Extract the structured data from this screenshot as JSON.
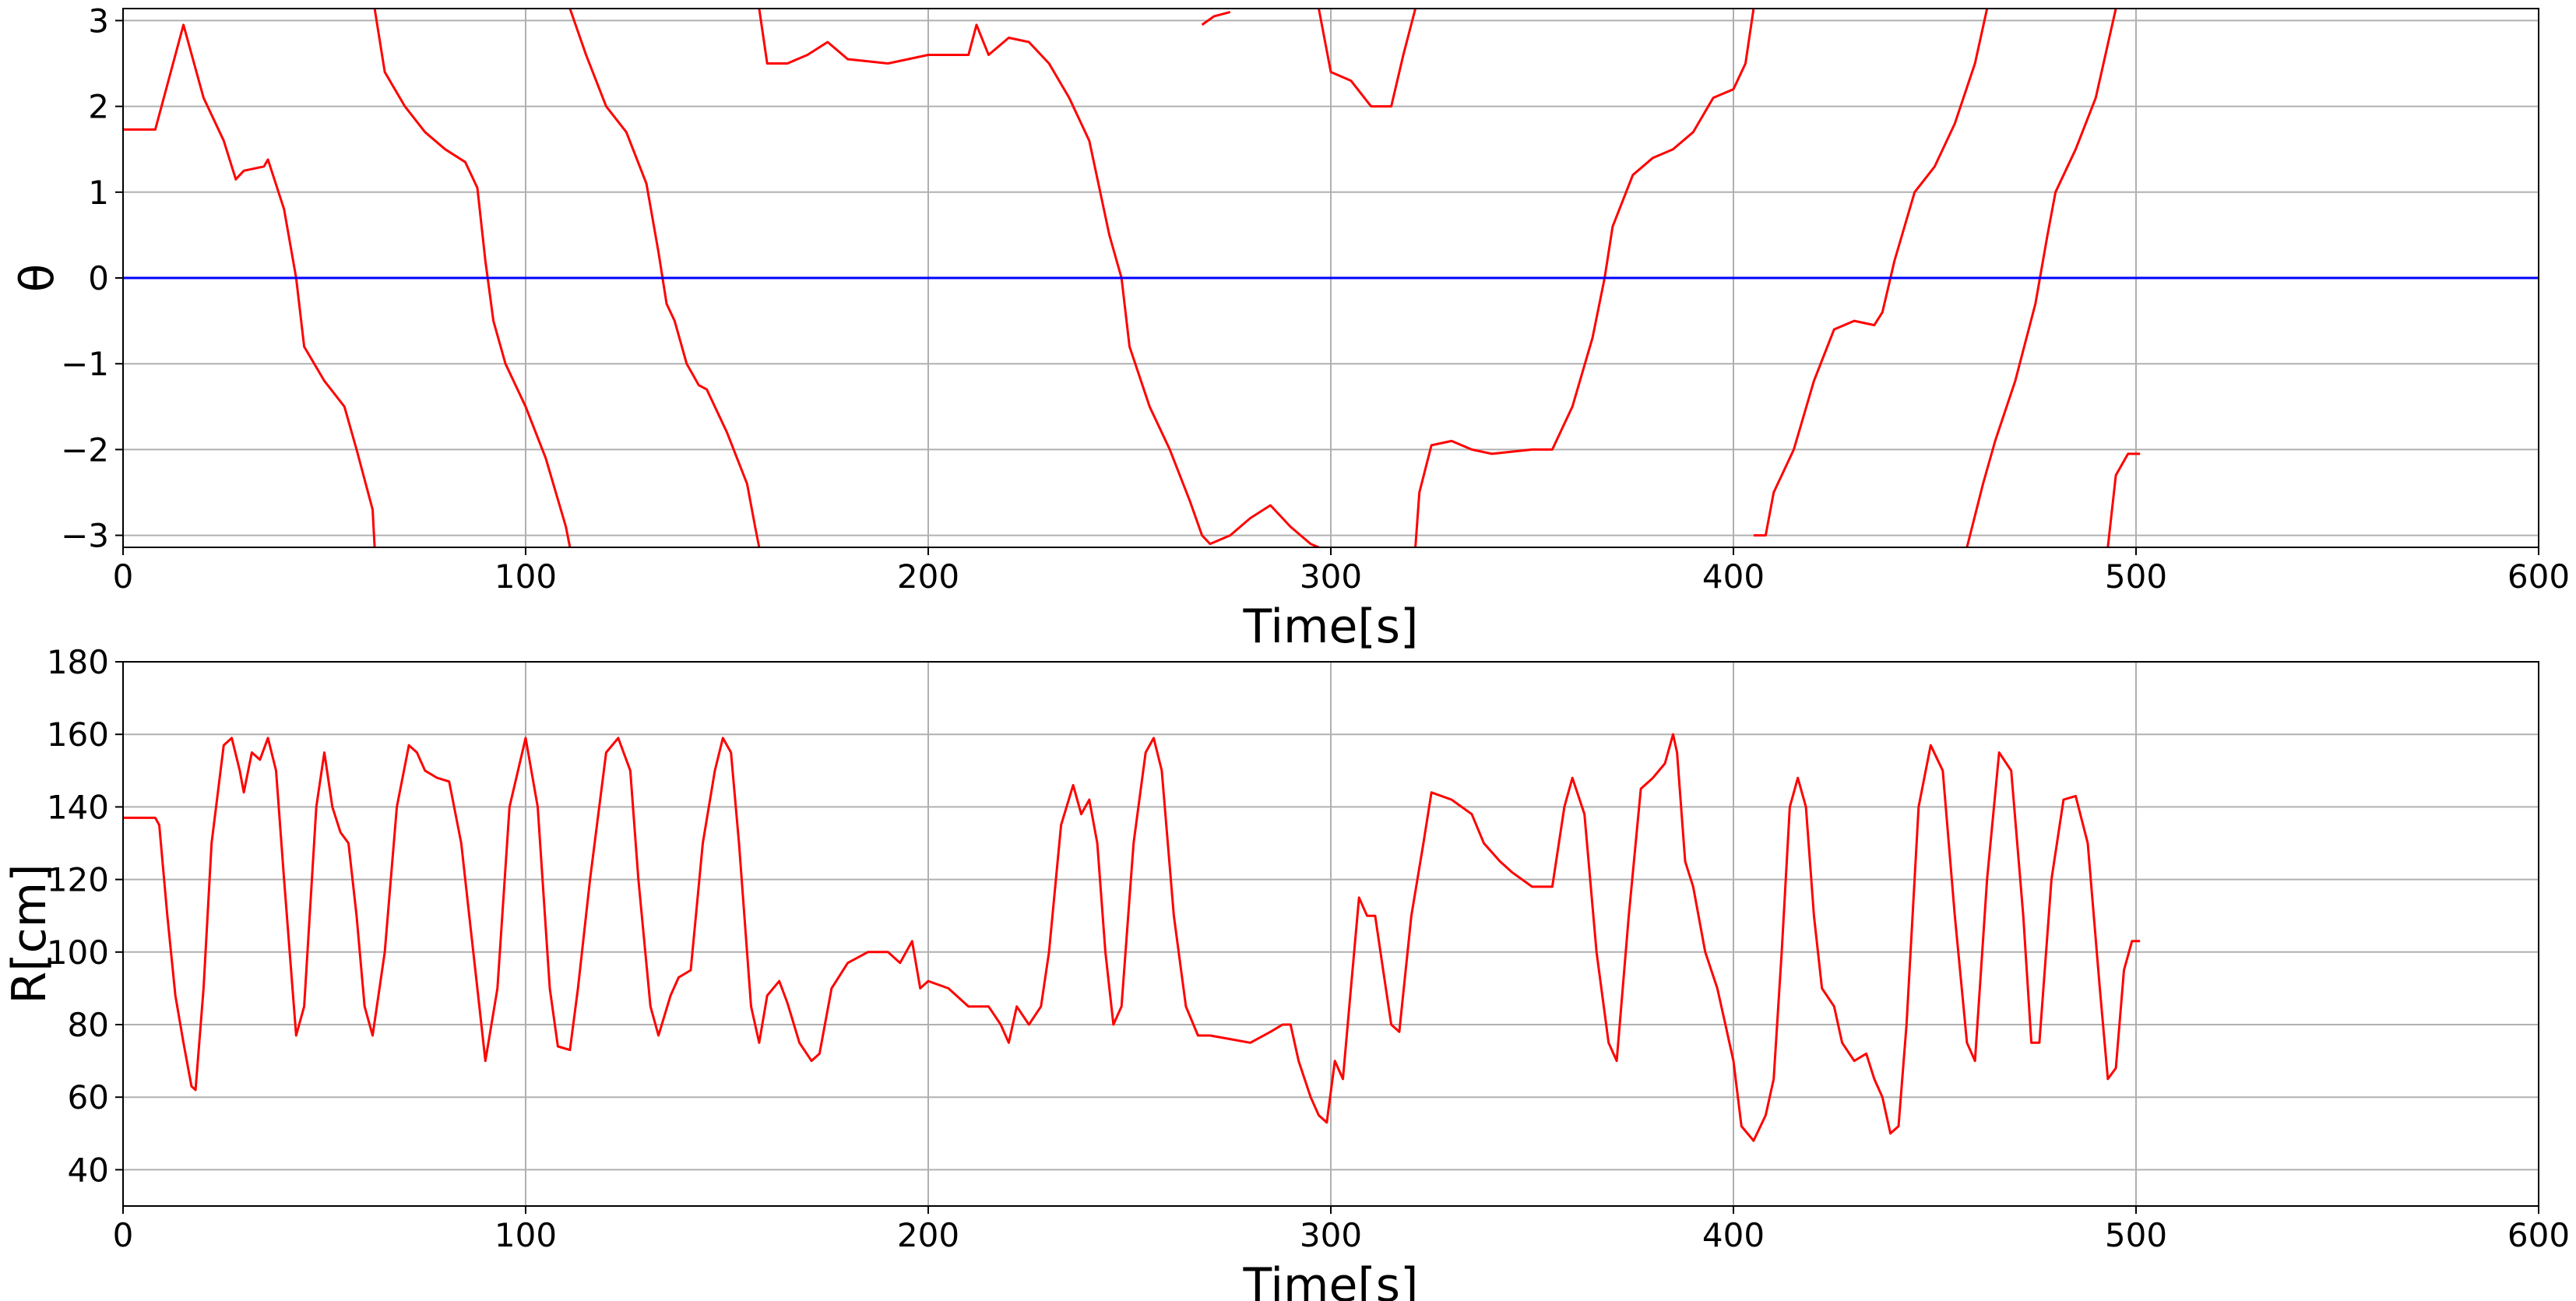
{
  "chart_data": [
    {
      "type": "line",
      "xlabel": "Time[s]",
      "ylabel": "θ",
      "xlim": [
        0,
        600
      ],
      "ylim": [
        -3.14,
        3.14
      ],
      "xticks": [
        0,
        100,
        200,
        300,
        400,
        500,
        600
      ],
      "yticks": [
        {
          "value": -3,
          "label": "−3"
        },
        {
          "value": -2,
          "label": "−2"
        },
        {
          "value": -1,
          "label": "−1"
        },
        0,
        1,
        2,
        3
      ],
      "grid": true,
      "series": [
        {
          "color": "#ff0000",
          "x": [
            0,
            8,
            15,
            20,
            25,
            28,
            30,
            35,
            36,
            40,
            43,
            45,
            50,
            55,
            58,
            62,
            62.5,
            62.5,
            62.5,
            65,
            70,
            75,
            80,
            85,
            88,
            90,
            92,
            95,
            100,
            105,
            110,
            111,
            111,
            111,
            115,
            120,
            125,
            130,
            133,
            135,
            137,
            140,
            143,
            145,
            150,
            155,
            157,
            158,
            158,
            158,
            160,
            165,
            170,
            175,
            180,
            190,
            200,
            210,
            212,
            215,
            220,
            225,
            230,
            235,
            240,
            245,
            248,
            250,
            255,
            260,
            265,
            268,
            270,
            275,
            280,
            285,
            290,
            295,
            297,
            297,
            297,
            300,
            305,
            310,
            315,
            318,
            321,
            321,
            321,
            322,
            325,
            330,
            335,
            340,
            350,
            355,
            360,
            365,
            368,
            370,
            375,
            380,
            385,
            390,
            395,
            400,
            403,
            405,
            405,
            405,
            408,
            410,
            415,
            420,
            425,
            430,
            435,
            437,
            440,
            445,
            450,
            455,
            460,
            463,
            463,
            458,
            462,
            465,
            470,
            475,
            478,
            480,
            485,
            490,
            495,
            495,
            493,
            495,
            498,
            501
          ],
          "values": [
            1.73,
            1.73,
            2.95,
            2.1,
            1.6,
            1.15,
            1.25,
            1.3,
            1.38,
            0.8,
            0,
            -0.8,
            -1.2,
            -1.5,
            -2.0,
            -2.7,
            -3.14,
            null,
            3.14,
            2.4,
            2.0,
            1.7,
            1.5,
            1.35,
            1.05,
            0.2,
            -0.5,
            -1.0,
            -1.5,
            -2.1,
            -2.9,
            -3.14,
            null,
            3.14,
            2.6,
            2.0,
            1.7,
            1.1,
            0.3,
            -0.3,
            -0.5,
            -1.0,
            -1.25,
            -1.3,
            -1.8,
            -2.4,
            -2.9,
            -3.14,
            null,
            3.14,
            2.5,
            2.5,
            2.6,
            2.75,
            2.55,
            2.5,
            2.6,
            2.6,
            2.95,
            2.6,
            2.8,
            2.75,
            2.5,
            2.1,
            1.6,
            0.5,
            0,
            -0.8,
            -1.5,
            -2.0,
            -2.6,
            -3.0,
            -3.1,
            -3.0,
            -2.8,
            -2.65,
            -2.9,
            -3.1,
            -3.14,
            null,
            3.14,
            2.4,
            2.3,
            2.0,
            2.0,
            2.6,
            3.14,
            null,
            -3.14,
            -2.5,
            -1.95,
            -1.9,
            -2.0,
            -2.05,
            -2.0,
            -2.0,
            -1.5,
            -0.7,
            0,
            0.6,
            1.2,
            1.4,
            1.5,
            1.7,
            2.1,
            2.2,
            2.5,
            3.14,
            null,
            -3.0,
            -3.0,
            -2.5,
            -2.0,
            -1.2,
            -0.6,
            -0.5,
            -0.55,
            -0.4,
            0.2,
            1.0,
            1.3,
            1.8,
            2.5,
            3.14,
            null,
            -3.14,
            -2.4,
            -1.9,
            -1.2,
            -0.3,
            0.5,
            1.0,
            1.5,
            2.1,
            3.14,
            null,
            -3.14,
            -2.3,
            -2.05,
            -2.05
          ]
        },
        {
          "color": "#ff0000",
          "x": [
            268,
            271,
            275
          ],
          "values": [
            2.95,
            3.05,
            3.1
          ]
        },
        {
          "color": "#0000ff",
          "x": [
            0,
            600
          ],
          "values": [
            0,
            0
          ]
        }
      ]
    },
    {
      "type": "line",
      "xlabel": "Time[s]",
      "ylabel": "R[cm]",
      "xlim": [
        0,
        600
      ],
      "ylim": [
        30,
        180
      ],
      "xticks": [
        0,
        100,
        200,
        300,
        400,
        500,
        600
      ],
      "yticks": [
        40,
        60,
        80,
        100,
        120,
        140,
        160,
        180
      ],
      "grid": true,
      "series": [
        {
          "color": "#ff0000",
          "x": [
            0,
            8,
            9,
            11,
            13,
            15,
            17,
            18,
            20,
            22,
            25,
            27,
            29,
            30,
            32,
            34,
            36,
            38,
            40,
            43,
            45,
            48,
            50,
            52,
            54,
            56,
            58,
            60,
            62,
            65,
            68,
            71,
            73,
            75,
            78,
            81,
            84,
            86,
            88,
            90,
            93,
            96,
            100,
            103,
            106,
            108,
            111,
            113,
            116,
            120,
            123,
            126,
            128,
            131,
            133,
            136,
            138,
            141,
            144,
            147,
            149,
            151,
            153,
            156,
            158,
            160,
            163,
            165,
            168,
            171,
            173,
            176,
            180,
            185,
            190,
            193,
            196,
            198,
            200,
            205,
            210,
            215,
            218,
            220,
            222,
            225,
            228,
            230,
            233,
            236,
            238,
            240,
            242,
            244,
            246,
            248,
            251,
            254,
            256,
            258,
            261,
            264,
            267,
            270,
            275,
            280,
            285,
            288,
            290,
            292,
            295,
            297,
            299,
            301,
            303,
            305,
            307,
            309,
            311,
            313,
            315,
            317,
            320,
            323,
            325,
            330,
            335,
            338,
            342,
            345,
            350,
            355,
            358,
            360,
            363,
            366,
            369,
            371,
            374,
            377,
            380,
            383,
            385,
            386,
            388,
            390,
            393,
            396,
            398,
            400,
            402,
            405,
            408,
            410,
            412,
            414,
            416,
            418,
            420,
            422,
            425,
            427,
            430,
            433,
            435,
            437,
            439,
            441,
            443,
            446,
            449,
            452,
            455,
            458,
            460,
            463,
            466,
            469,
            472,
            474,
            476,
            479,
            482,
            485,
            488,
            491,
            493,
            495,
            497,
            499,
            501
          ],
          "values": [
            137,
            137,
            135,
            110,
            88,
            75,
            63,
            62,
            90,
            130,
            157,
            159,
            150,
            144,
            155,
            153,
            159,
            150,
            120,
            77,
            85,
            140,
            155,
            140,
            133,
            130,
            110,
            85,
            77,
            100,
            140,
            157,
            155,
            150,
            148,
            147,
            130,
            110,
            90,
            70,
            90,
            140,
            159,
            140,
            90,
            74,
            73,
            90,
            120,
            155,
            159,
            150,
            120,
            85,
            77,
            88,
            93,
            95,
            130,
            150,
            159,
            155,
            130,
            85,
            75,
            88,
            92,
            86,
            75,
            70,
            72,
            90,
            97,
            100,
            100,
            97,
            103,
            90,
            92,
            90,
            85,
            85,
            80,
            75,
            85,
            80,
            85,
            100,
            135,
            146,
            138,
            142,
            130,
            100,
            80,
            85,
            130,
            155,
            159,
            150,
            110,
            85,
            77,
            77,
            76,
            75,
            78,
            80,
            80,
            70,
            60,
            55,
            53,
            70,
            65,
            90,
            115,
            110,
            110,
            95,
            80,
            78,
            110,
            130,
            144,
            142,
            138,
            130,
            125,
            122,
            118,
            118,
            140,
            148,
            138,
            100,
            75,
            70,
            110,
            145,
            148,
            152,
            160,
            155,
            125,
            118,
            100,
            90,
            80,
            70,
            52,
            48,
            55,
            65,
            100,
            140,
            148,
            140,
            110,
            90,
            85,
            75,
            70,
            72,
            65,
            60,
            50,
            52,
            80,
            140,
            157,
            150,
            110,
            75,
            70,
            120,
            155,
            150,
            110,
            75,
            75,
            120,
            142,
            143,
            130,
            90,
            65,
            68,
            95,
            103,
            103
          ]
        }
      ]
    }
  ]
}
